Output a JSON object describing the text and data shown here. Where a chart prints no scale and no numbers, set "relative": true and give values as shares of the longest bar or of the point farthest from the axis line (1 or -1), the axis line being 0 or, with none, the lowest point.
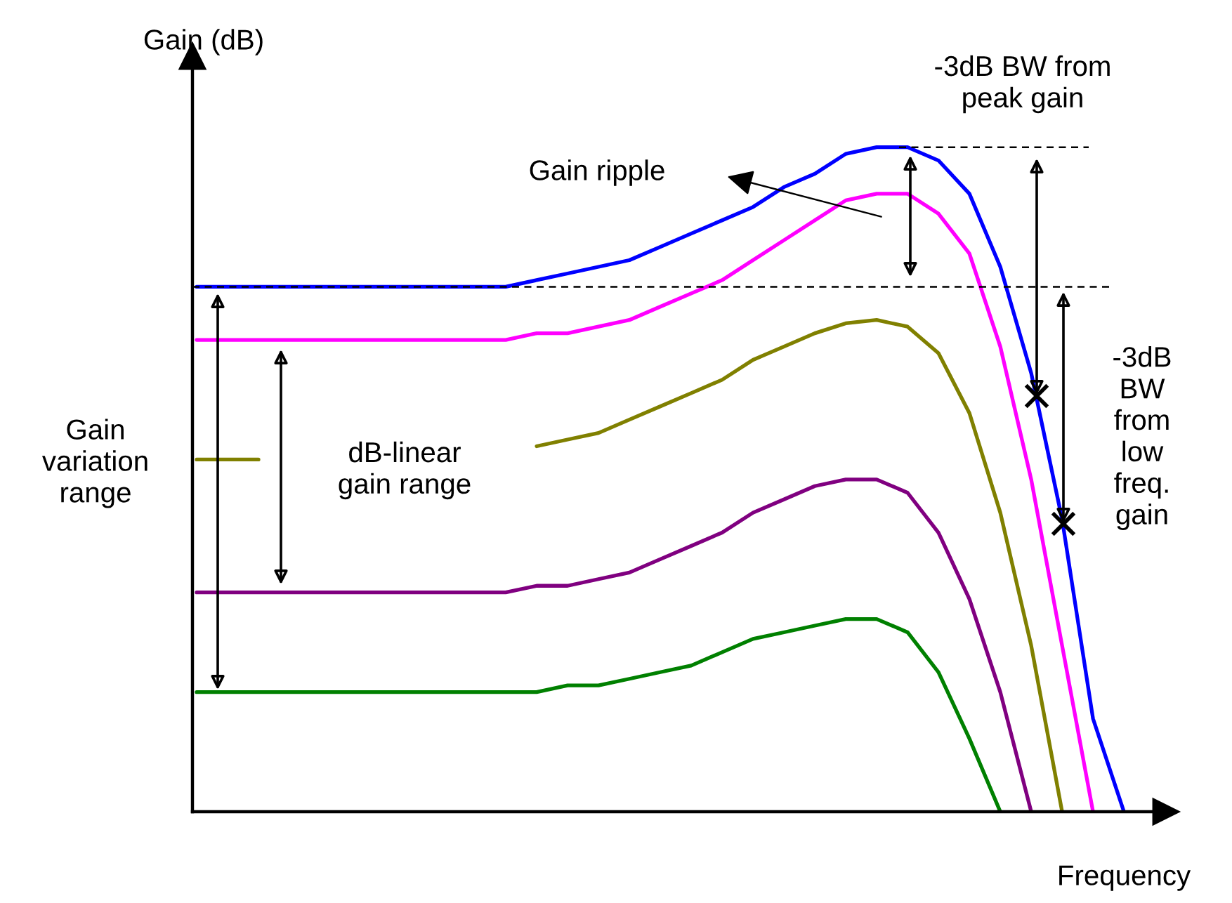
{
  "chart_data": {
    "type": "line",
    "relative": true,
    "xlabel": "Frequency",
    "ylabel": "Gain (dB)",
    "categories": [
      null,
      null,
      null,
      null,
      null,
      null,
      null,
      null,
      null,
      null,
      null,
      null,
      null,
      null,
      null,
      null,
      null,
      null,
      null,
      null,
      null,
      null,
      null,
      null,
      null,
      null,
      null,
      null,
      null,
      null,
      null
    ],
    "series": [
      {
        "color": "#0000ff",
        "values": [
          0.79,
          0.79,
          0.79,
          0.79,
          0.79,
          0.79,
          0.79,
          0.79,
          0.79,
          0.79,
          0.79,
          0.8,
          0.81,
          0.82,
          0.83,
          0.85,
          0.87,
          0.89,
          0.91,
          0.94,
          0.96,
          0.99,
          1.0,
          1.0,
          0.98,
          0.93,
          0.82,
          0.66,
          0.44,
          0.14,
          0
        ]
      },
      {
        "color": "#ff00ff",
        "values": [
          0.71,
          0.71,
          0.71,
          0.71,
          0.71,
          0.71,
          0.71,
          0.71,
          0.71,
          0.71,
          0.71,
          0.72,
          0.72,
          0.73,
          0.74,
          0.76,
          0.78,
          0.8,
          0.83,
          0.86,
          0.89,
          0.92,
          0.93,
          0.93,
          0.9,
          0.84,
          0.7,
          0.5,
          0.25,
          0,
          null
        ]
      },
      {
        "color": "#808000",
        "values": [
          0.53,
          0.53,
          0.53,
          null,
          null,
          null,
          null,
          null,
          null,
          null,
          null,
          0.55,
          0.56,
          0.57,
          0.59,
          0.61,
          0.63,
          0.65,
          0.68,
          0.7,
          0.72,
          0.735,
          0.74,
          0.73,
          0.69,
          0.6,
          0.45,
          0.25,
          0,
          null,
          null
        ]
      },
      {
        "color": "#800080",
        "values": [
          0.33,
          0.33,
          0.33,
          0.33,
          0.33,
          0.33,
          0.33,
          0.33,
          0.33,
          0.33,
          0.33,
          0.34,
          0.34,
          0.35,
          0.36,
          0.38,
          0.4,
          0.42,
          0.45,
          0.47,
          0.49,
          0.5,
          0.5,
          0.48,
          0.42,
          0.32,
          0.18,
          0,
          null,
          null,
          null
        ]
      },
      {
        "color": "#008000",
        "values": [
          0.18,
          0.18,
          0.18,
          0.18,
          0.18,
          0.18,
          0.18,
          0.18,
          0.18,
          0.18,
          0.18,
          0.18,
          0.19,
          0.19,
          0.2,
          0.21,
          0.22,
          0.24,
          0.26,
          0.27,
          0.28,
          0.29,
          0.29,
          0.27,
          0.21,
          0.11,
          0,
          null,
          null,
          null,
          null
        ]
      }
    ],
    "ref_lines": [
      {
        "axis": "y",
        "value": 1.0,
        "line_style": "dashed"
      },
      {
        "axis": "y",
        "value": 0.79,
        "line_style": "dashed"
      }
    ],
    "annotations": [
      "Gain ripple",
      "-3dB BW from\npeak gain",
      "-3dB\nBW\nfrom\nlow\nfreq.\ngain",
      "Gain\nvariation\nrange",
      "dB-linear\ngain range"
    ]
  }
}
